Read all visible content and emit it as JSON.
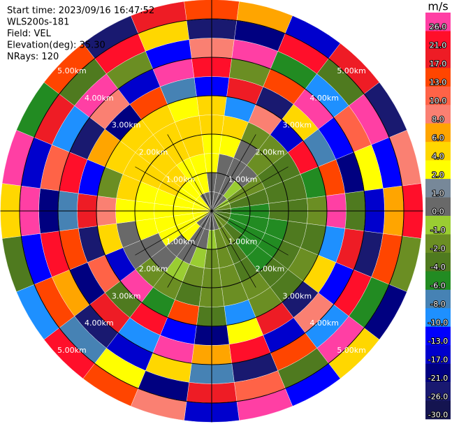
{
  "chart_data": {
    "type": "ppi",
    "info": [
      "Start time: 2023/09/16 16:47:52",
      "WLS200s-181",
      "Field: VEL",
      "Elevation(deg): 35.30",
      "NRays: 120"
    ],
    "colorbar_title": "m/s",
    "colorbar_ticks": [
      {
        "value": 26,
        "label": "26.0"
      },
      {
        "value": 21,
        "label": "21.0"
      },
      {
        "value": 17,
        "label": "17.0"
      },
      {
        "value": 13,
        "label": "13.0"
      },
      {
        "value": 10,
        "label": "10.0"
      },
      {
        "value": 8,
        "label": "8.0"
      },
      {
        "value": 6,
        "label": "6.0"
      },
      {
        "value": 4,
        "label": "4.0"
      },
      {
        "value": 2,
        "label": "2.0"
      },
      {
        "value": 1,
        "label": "1.0"
      },
      {
        "value": 0,
        "label": "0.0"
      },
      {
        "value": -1,
        "label": "-1.0"
      },
      {
        "value": -2,
        "label": "-2.0"
      },
      {
        "value": -4,
        "label": "-4.0"
      },
      {
        "value": -6,
        "label": "-6.0"
      },
      {
        "value": -8,
        "label": "-8.0"
      },
      {
        "value": -10,
        "label": "-10.0"
      },
      {
        "value": -13,
        "label": "-13.0"
      },
      {
        "value": -17,
        "label": "-17.0"
      },
      {
        "value": -21,
        "label": "-21.0"
      },
      {
        "value": -26,
        "label": "-26.0"
      },
      {
        "value": -30,
        "label": "-30.0"
      }
    ],
    "colorbar_colors": [
      "#ff3fa4",
      "#ff0f2a",
      "#ee1c25",
      "#ff4500",
      "#ff6347",
      "#fa8072",
      "#ffa500",
      "#ffd700",
      "#ffff00",
      "#778899",
      "#696969",
      "#9acd32",
      "#6b8e23",
      "#4f7a1f",
      "#228b22",
      "#4682b4",
      "#1e90ff",
      "#0000ff",
      "#0000cd",
      "#000080",
      "#191970",
      "#141450"
    ],
    "rings_km": [
      1,
      2,
      3,
      4,
      5
    ],
    "ring_labels": [
      "1.00km",
      "2.00km",
      "3.00km",
      "4.00km",
      "5.00km"
    ],
    "azimuths": [
      0,
      15,
      30,
      45,
      60,
      75,
      90,
      105,
      120,
      135,
      150,
      165,
      180,
      195,
      210,
      225,
      240,
      255,
      270,
      285,
      300,
      315,
      330,
      345
    ],
    "gate_edges_km": [
      0,
      0.5,
      1,
      1.5,
      2,
      2.5,
      3,
      3.5,
      4,
      4.5,
      5,
      5.5
    ],
    "values": [
      [
        0.5,
        0.5,
        2.5,
        3,
        4.5,
        5,
        -13,
        21,
        8,
        -26,
        13
      ],
      [
        0.5,
        0.5,
        0.5,
        3,
        5,
        -10,
        17,
        -2,
        26,
        -21,
        6
      ],
      [
        0.5,
        0.5,
        0.5,
        0.5,
        -1.5,
        8,
        -26,
        13,
        -6,
        21,
        -17
      ],
      [
        0.5,
        -0.5,
        0.5,
        -1.5,
        -1.5,
        -17,
        4,
        26,
        -10,
        -4,
        17
      ],
      [
        -0.5,
        -1.5,
        -1.5,
        -3,
        -3,
        21,
        -8,
        -13,
        10,
        26,
        -26
      ],
      [
        -1.5,
        -3,
        -3,
        -3,
        -3,
        -6,
        13,
        -21,
        2,
        -13,
        8
      ],
      [
        -3,
        -5,
        -5,
        -3,
        -3,
        -1.5,
        26,
        -4,
        -17,
        6,
        21
      ],
      [
        -3,
        -5,
        -5,
        -5,
        -3,
        -3,
        -10,
        17,
        -26,
        13,
        -2
      ],
      [
        -3,
        -5,
        -5,
        -5,
        -3,
        -1.5,
        5,
        -13,
        21,
        -6,
        -21
      ],
      [
        -1.5,
        -3,
        -5,
        -5,
        -3,
        -3,
        -26,
        8,
        -10,
        26,
        4
      ],
      [
        -1.5,
        -1.5,
        -3,
        -3,
        -1.5,
        -1.5,
        17,
        -17,
        13,
        -4,
        -13
      ],
      [
        0.5,
        -1.5,
        -1.5,
        -1.5,
        -1.5,
        -10,
        2,
        21,
        -26,
        10,
        26
      ],
      [
        0.5,
        -0.5,
        -1.5,
        -1.5,
        -1.5,
        -3,
        -21,
        6,
        -8,
        17,
        -17
      ],
      [
        0.5,
        0.5,
        -0.5,
        -1.5,
        -3,
        13,
        -13,
        26,
        4,
        -21,
        8
      ],
      [
        0.5,
        0.5,
        0.5,
        -0.5,
        -1.5,
        -6,
        21,
        -10,
        -17,
        2,
        13
      ],
      [
        0.5,
        3,
        0.5,
        0.5,
        -1.5,
        26,
        -4,
        17,
        -26,
        -8,
        21
      ],
      [
        3,
        3,
        3,
        0.5,
        0.5,
        -17,
        10,
        -21,
        6,
        13,
        -10
      ],
      [
        3,
        3,
        3,
        3,
        0.5,
        5,
        -26,
        13,
        21,
        -13,
        -4
      ],
      [
        3,
        3,
        3,
        3,
        3,
        8,
        17,
        -8,
        -21,
        26,
        4
      ],
      [
        3,
        3,
        3,
        3,
        5,
        -2,
        -13,
        21,
        10,
        -17,
        26
      ],
      [
        3,
        3,
        5,
        5,
        5,
        4,
        6,
        -26,
        -10,
        17,
        -6
      ],
      [
        3,
        3,
        5,
        5,
        5,
        5,
        -21,
        8,
        26,
        -4,
        13
      ],
      [
        0.5,
        3,
        3,
        5,
        5,
        5,
        13,
        -17,
        -2,
        21,
        -26
      ],
      [
        0.5,
        3,
        3,
        5,
        5,
        3,
        -8,
        26,
        -13,
        4,
        17
      ]
    ]
  }
}
